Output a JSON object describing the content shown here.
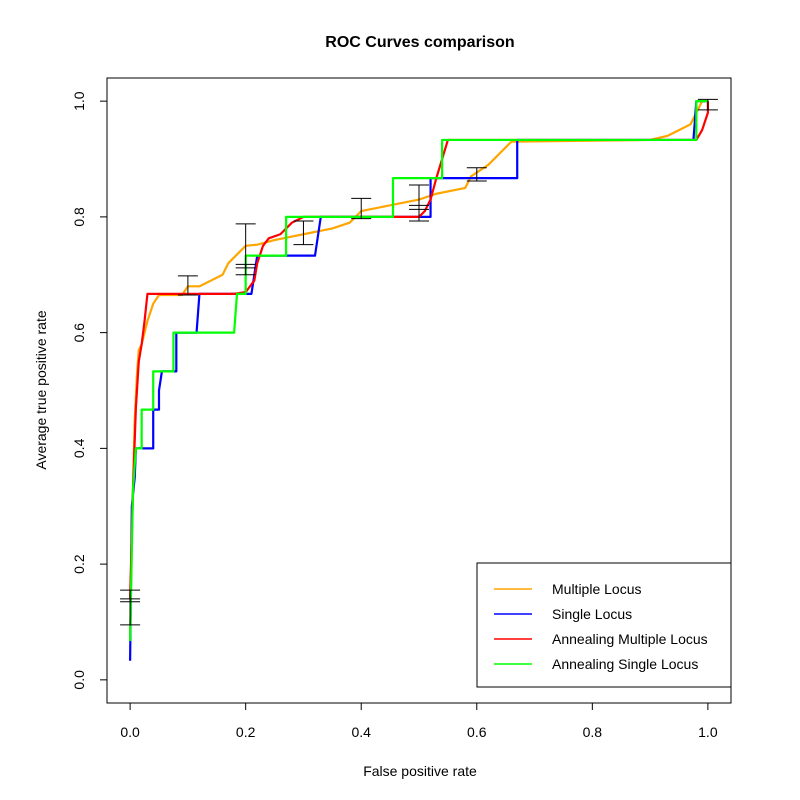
{
  "chart_data": {
    "type": "line",
    "title": "ROC Curves comparison",
    "xlabel": "False positive rate",
    "ylabel": "Average true positive rate",
    "xlim": [
      -0.04,
      1.04
    ],
    "ylim": [
      -0.04,
      1.04
    ],
    "x_ticks": [
      0.0,
      0.2,
      0.4,
      0.6,
      0.8,
      1.0
    ],
    "y_ticks": [
      0.0,
      0.2,
      0.4,
      0.6,
      0.8,
      1.0
    ],
    "x_tick_labels": [
      "0.0",
      "0.2",
      "0.4",
      "0.6",
      "0.8",
      "1.0"
    ],
    "y_tick_labels": [
      "0.0",
      "0.2",
      "0.4",
      "0.6",
      "0.8",
      "1.0"
    ],
    "grid": false,
    "legend_position": "bottom-right",
    "series": [
      {
        "name": "Multiple Locus",
        "color": "#FFA500",
        "points": [
          [
            0,
            0.07
          ],
          [
            0.002,
            0.2
          ],
          [
            0.005,
            0.33
          ],
          [
            0.008,
            0.45
          ],
          [
            0.012,
            0.53
          ],
          [
            0.015,
            0.57
          ],
          [
            0.02,
            0.58
          ],
          [
            0.03,
            0.62
          ],
          [
            0.04,
            0.65
          ],
          [
            0.05,
            0.665
          ],
          [
            0.09,
            0.665
          ],
          [
            0.1,
            0.68
          ],
          [
            0.12,
            0.68
          ],
          [
            0.14,
            0.69
          ],
          [
            0.16,
            0.7
          ],
          [
            0.17,
            0.72
          ],
          [
            0.18,
            0.73
          ],
          [
            0.2,
            0.75
          ],
          [
            0.22,
            0.752
          ],
          [
            0.25,
            0.76
          ],
          [
            0.3,
            0.77
          ],
          [
            0.35,
            0.78
          ],
          [
            0.38,
            0.79
          ],
          [
            0.4,
            0.81
          ],
          [
            0.45,
            0.82
          ],
          [
            0.5,
            0.83
          ],
          [
            0.53,
            0.84
          ],
          [
            0.58,
            0.85
          ],
          [
            0.59,
            0.87
          ],
          [
            0.62,
            0.89
          ],
          [
            0.66,
            0.93
          ],
          [
            0.9,
            0.933
          ],
          [
            0.93,
            0.94
          ],
          [
            0.95,
            0.95
          ],
          [
            0.97,
            0.96
          ],
          [
            0.98,
            0.98
          ],
          [
            0.99,
            1.0
          ],
          [
            1.0,
            1.0
          ]
        ]
      },
      {
        "name": "Single Locus",
        "color": "#0000FF",
        "points": [
          [
            0,
            0.033
          ],
          [
            0.003,
            0.3
          ],
          [
            0.008,
            0.35
          ],
          [
            0.01,
            0.4
          ],
          [
            0.04,
            0.4
          ],
          [
            0.04,
            0.467
          ],
          [
            0.05,
            0.467
          ],
          [
            0.05,
            0.5
          ],
          [
            0.055,
            0.533
          ],
          [
            0.08,
            0.533
          ],
          [
            0.08,
            0.6
          ],
          [
            0.115,
            0.6
          ],
          [
            0.12,
            0.667
          ],
          [
            0.21,
            0.667
          ],
          [
            0.22,
            0.733
          ],
          [
            0.32,
            0.733
          ],
          [
            0.33,
            0.8
          ],
          [
            0.52,
            0.8
          ],
          [
            0.52,
            0.867
          ],
          [
            0.67,
            0.867
          ],
          [
            0.67,
            0.933
          ],
          [
            0.975,
            0.933
          ],
          [
            0.98,
            1.0
          ],
          [
            1.0,
            1.0
          ]
        ]
      },
      {
        "name": "Annealing Multiple Locus",
        "color": "#FF0000",
        "points": [
          [
            0,
            0.14
          ],
          [
            0.005,
            0.33
          ],
          [
            0.01,
            0.47
          ],
          [
            0.015,
            0.55
          ],
          [
            0.02,
            0.58
          ],
          [
            0.025,
            0.62
          ],
          [
            0.03,
            0.667
          ],
          [
            0.18,
            0.667
          ],
          [
            0.2,
            0.67
          ],
          [
            0.215,
            0.69
          ],
          [
            0.22,
            0.72
          ],
          [
            0.23,
            0.75
          ],
          [
            0.24,
            0.763
          ],
          [
            0.26,
            0.77
          ],
          [
            0.28,
            0.79
          ],
          [
            0.3,
            0.8
          ],
          [
            0.5,
            0.8
          ],
          [
            0.51,
            0.81
          ],
          [
            0.52,
            0.83
          ],
          [
            0.53,
            0.867
          ],
          [
            0.54,
            0.9
          ],
          [
            0.55,
            0.933
          ],
          [
            0.98,
            0.933
          ],
          [
            0.99,
            0.95
          ],
          [
            1.0,
            0.98
          ],
          [
            1.0,
            1.0
          ]
        ]
      },
      {
        "name": "Annealing Single Locus",
        "color": "#00FF00",
        "points": [
          [
            0,
            0.067
          ],
          [
            0.005,
            0.33
          ],
          [
            0.01,
            0.4
          ],
          [
            0.02,
            0.4
          ],
          [
            0.02,
            0.467
          ],
          [
            0.04,
            0.467
          ],
          [
            0.04,
            0.533
          ],
          [
            0.075,
            0.533
          ],
          [
            0.075,
            0.6
          ],
          [
            0.18,
            0.6
          ],
          [
            0.185,
            0.667
          ],
          [
            0.2,
            0.667
          ],
          [
            0.2,
            0.733
          ],
          [
            0.27,
            0.733
          ],
          [
            0.27,
            0.8
          ],
          [
            0.455,
            0.8
          ],
          [
            0.455,
            0.867
          ],
          [
            0.54,
            0.867
          ],
          [
            0.54,
            0.933
          ],
          [
            0.98,
            0.933
          ],
          [
            0.98,
            1.0
          ],
          [
            1.0,
            1.0
          ]
        ]
      }
    ],
    "error_bars": [
      {
        "x": 0.0,
        "low": 0.095,
        "high": 0.155
      },
      {
        "x": 0.0,
        "low": 0.135,
        "high": 0.14
      },
      {
        "x": 0.1,
        "low": 0.665,
        "high": 0.698
      },
      {
        "x": 0.2,
        "low": 0.7,
        "high": 0.788
      },
      {
        "x": 0.2,
        "low": 0.712,
        "high": 0.718
      },
      {
        "x": 0.3,
        "low": 0.752,
        "high": 0.793
      },
      {
        "x": 0.4,
        "low": 0.797,
        "high": 0.832
      },
      {
        "x": 0.5,
        "low": 0.793,
        "high": 0.855
      },
      {
        "x": 0.5,
        "low": 0.813,
        "high": 0.82
      },
      {
        "x": 0.6,
        "low": 0.862,
        "high": 0.885
      },
      {
        "x": 1.0,
        "low": 0.985,
        "high": 1.003
      }
    ]
  }
}
